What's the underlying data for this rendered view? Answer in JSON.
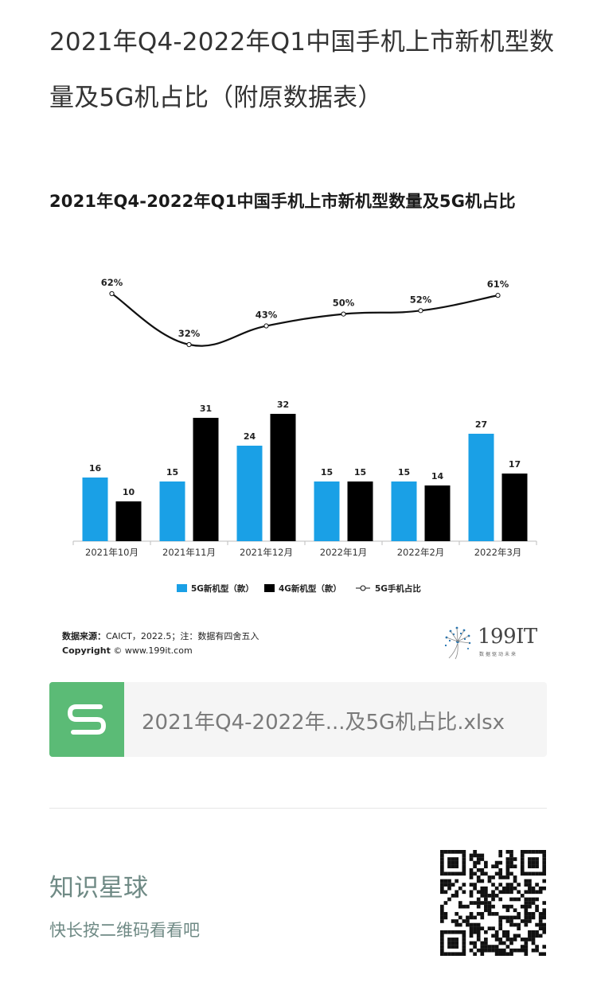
{
  "article": {
    "title": "2021年Q4-2022年Q1中国手机上市新机型数量及5G机占比（附原数据表）"
  },
  "chart_data": {
    "type": "bar+line",
    "title": "2021年Q4-2022年Q1中国手机上市新机型数量及5G机占比",
    "categories": [
      "2021年10月",
      "2021年11月",
      "2021年12月",
      "2022年1月",
      "2022年2月",
      "2022年3月"
    ],
    "series": [
      {
        "name": "5G新机型（款）",
        "type": "bar",
        "color": "#1aa0e6",
        "values": [
          16,
          15,
          24,
          15,
          15,
          27
        ]
      },
      {
        "name": "4G新机型（款）",
        "type": "bar",
        "color": "#000000",
        "values": [
          10,
          31,
          32,
          15,
          14,
          17
        ]
      },
      {
        "name": "5G手机占比",
        "type": "line",
        "color": "#000000",
        "values": [
          62,
          32,
          43,
          50,
          52,
          61
        ],
        "value_labels": [
          "62%",
          "32%",
          "43%",
          "50%",
          "52%",
          "61%"
        ]
      }
    ],
    "legend_position": "bottom",
    "grid": false
  },
  "footer": {
    "source_label": "数据来源：",
    "source_text": "CAICT，2022.5；注：数据有四舍五入",
    "copyright_label": "Copyright",
    "copyright_text": "© www.199it.com",
    "brand_name": "199IT",
    "brand_slogan": "数据驱动未来"
  },
  "attachment": {
    "file_name": "2021年Q4-2022年...及5G机占比.xlsx",
    "icon": "spreadsheet-s-icon",
    "icon_color": "#5bbb76"
  },
  "promo": {
    "title": "知识星球",
    "subtitle": "快长按二维码看看吧",
    "qr_icon": "qr-code"
  }
}
